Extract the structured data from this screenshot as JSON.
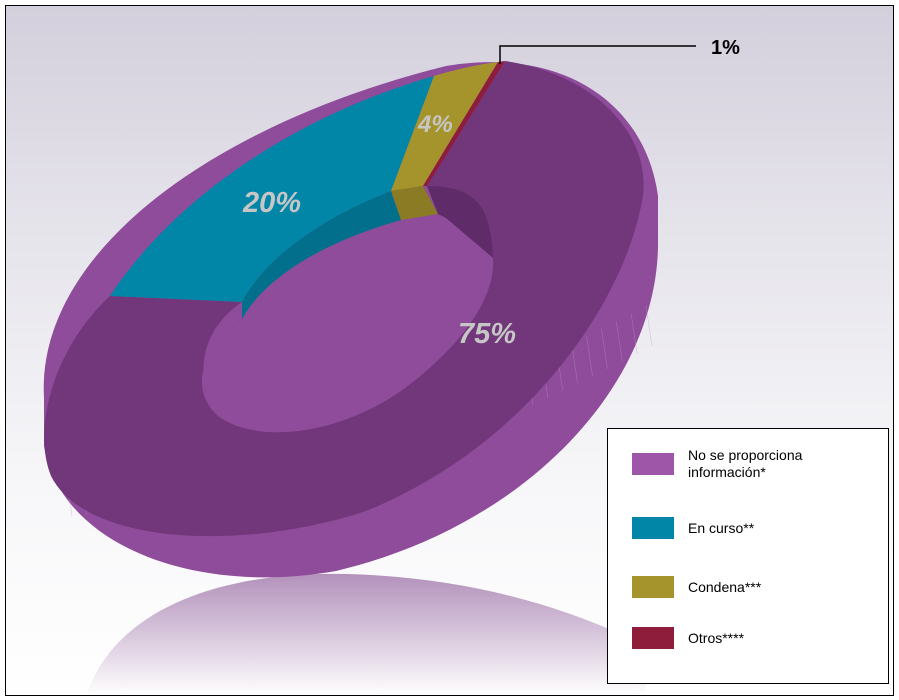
{
  "chart_data": {
    "type": "pie",
    "style": "3d-donut",
    "slices": [
      {
        "label": "No se proporciona información*",
        "value": 75,
        "display": "75%",
        "color": "#71377a"
      },
      {
        "label": "En curso**",
        "value": 20,
        "display": "20%",
        "color": "#0286a8"
      },
      {
        "label": "Condena***",
        "value": 4,
        "display": "4%",
        "color": "#a5942c"
      },
      {
        "label": "Otros****",
        "value": 1,
        "display": "1%",
        "color": "#8e1c3b"
      }
    ],
    "legend_placement": "bottom-right"
  },
  "legend": {
    "items": [
      {
        "label": "No se proporciona información*",
        "color": "#9e57a8"
      },
      {
        "label": "En curso**",
        "color": "#0286a8"
      },
      {
        "label": "Condena***",
        "color": "#a5942c"
      },
      {
        "label": "Otros****",
        "color": "#8e1c3b"
      }
    ]
  },
  "colors": {
    "side_purple": "#8e4c9a",
    "inner_purple": "#5f2b68",
    "inner_teal": "#02708c",
    "inner_gold": "#8a7b24",
    "reflection": "#8a5596"
  }
}
